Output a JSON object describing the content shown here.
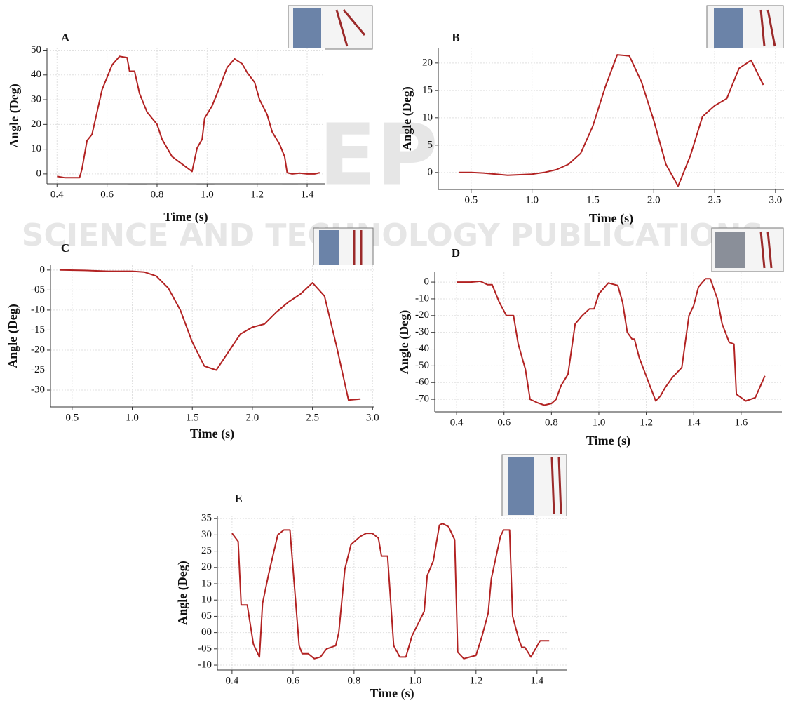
{
  "watermark": {
    "title": "SCITEPRESS",
    "subtitle": "SCIENCE AND TECHNOLOGY PUBLICATIONS"
  },
  "chart_data": [
    {
      "type": "line",
      "panel": "A",
      "xlabel": "Time (s)",
      "ylabel": "Angle (Deg)",
      "grid": true,
      "color": "#b22222",
      "xlim": [
        0.36,
        1.47
      ],
      "ylim": [
        -4,
        51
      ],
      "xticks": [
        0.4,
        0.6,
        0.8,
        {
          "value": 1,
          "label": "1.0"
        },
        1.2,
        1.4
      ],
      "yticks": [
        0,
        10,
        20,
        30,
        40,
        50
      ],
      "x": [
        0.4,
        0.43,
        0.47,
        0.49,
        0.5,
        0.52,
        0.54,
        0.56,
        0.58,
        0.62,
        0.65,
        0.68,
        0.69,
        0.71,
        0.73,
        0.76,
        0.78,
        0.8,
        0.82,
        0.86,
        0.9,
        0.94,
        0.96,
        0.98,
        0.99,
        1.02,
        1.05,
        1.08,
        1.11,
        1.14,
        1.16,
        1.19,
        1.21,
        1.24,
        1.26,
        1.29,
        1.31,
        1.32,
        1.34,
        1.37,
        1.4,
        1.43,
        1.45
      ],
      "values": [
        -1,
        -1.5,
        -1.5,
        -1.5,
        2,
        13.5,
        16,
        25,
        34,
        44,
        47.5,
        47,
        41.5,
        41.5,
        32.5,
        25,
        22.5,
        20,
        14,
        7,
        4,
        1,
        10.5,
        14,
        22.5,
        27.5,
        35,
        43,
        46.5,
        44.5,
        41,
        37,
        30,
        24,
        17,
        12,
        7,
        0.5,
        0,
        0.3,
        0,
        0,
        0.5
      ]
    },
    {
      "type": "line",
      "panel": "B",
      "xlabel": "Time (s)",
      "ylabel": "Angle (Deg)",
      "grid": true,
      "color": "#b22222",
      "xlim": [
        0.23,
        3.07
      ],
      "ylim": [
        -3.1,
        22.8
      ],
      "xticks": [
        0.5,
        {
          "value": 1,
          "label": "1.0"
        },
        1.5,
        {
          "value": 2,
          "label": "2.0"
        },
        2.5,
        {
          "value": 3,
          "label": "3.0"
        }
      ],
      "yticks": [
        0,
        5,
        10,
        15,
        20
      ],
      "x": [
        0.4,
        0.5,
        0.6,
        0.8,
        1.0,
        1.1,
        1.2,
        1.3,
        1.4,
        1.5,
        1.6,
        1.7,
        1.8,
        1.9,
        2.0,
        2.1,
        2.2,
        2.3,
        2.4,
        2.5,
        2.6,
        2.7,
        2.8,
        2.9
      ],
      "values": [
        0,
        0,
        -0.1,
        -0.5,
        -0.3,
        0,
        0.5,
        1.5,
        3.5,
        8.5,
        15.5,
        21.5,
        21.3,
        16.5,
        9.5,
        1.5,
        -2.5,
        3,
        10.2,
        12.2,
        13.5,
        19,
        20.5,
        16
      ]
    },
    {
      "type": "line",
      "panel": "C",
      "xlabel": "Time (s)",
      "ylabel": "Angle (Deg)",
      "grid": true,
      "color": "#b22222",
      "xlim": [
        0.32,
        3.01
      ],
      "ylim": [
        -34.2,
        1.2
      ],
      "xticks": [
        0.5,
        {
          "value": 1,
          "label": "1.0"
        },
        1.5,
        {
          "value": 2,
          "label": "2.0"
        },
        2.5,
        {
          "value": 3,
          "label": "3.0"
        }
      ],
      "yticks": [
        0,
        {
          "value": -5,
          "label": "-05"
        },
        -10,
        -15,
        -20,
        -25,
        -30
      ],
      "x": [
        0.4,
        0.6,
        0.8,
        1.0,
        1.1,
        1.2,
        1.3,
        1.4,
        1.5,
        1.6,
        1.7,
        1.8,
        1.9,
        2.0,
        2.1,
        2.2,
        2.3,
        2.4,
        2.5,
        2.6,
        2.7,
        2.8,
        2.9
      ],
      "values": [
        0,
        -0.1,
        -0.3,
        -0.3,
        -0.5,
        -1.5,
        -4.5,
        -10,
        -18,
        -24,
        -25,
        -20.5,
        -16,
        -14.3,
        -13.5,
        -10.5,
        -8,
        -6,
        -3.2,
        -6.5,
        -19,
        -32.5,
        -32.2
      ]
    },
    {
      "type": "line",
      "panel": "D",
      "xlabel": "Time (s)",
      "ylabel": "Angle (Deg)",
      "grid": true,
      "color": "#b22222",
      "xlim": [
        0.308,
        1.772
      ],
      "ylim": [
        -77.5,
        5.9
      ],
      "xticks": [
        0.4,
        0.6,
        0.8,
        {
          "value": 1,
          "label": "1.0"
        },
        1.2,
        1.4,
        1.6
      ],
      "yticks": [
        0,
        -10,
        -20,
        -30,
        -40,
        -50,
        -60,
        -70
      ],
      "x": [
        0.4,
        0.46,
        0.5,
        0.53,
        0.55,
        0.58,
        0.61,
        0.64,
        0.66,
        0.69,
        0.71,
        0.74,
        0.77,
        0.8,
        0.82,
        0.84,
        0.87,
        0.9,
        0.93,
        0.96,
        0.98,
        1.0,
        1.04,
        1.08,
        1.1,
        1.12,
        1.14,
        1.15,
        1.17,
        1.21,
        1.24,
        1.26,
        1.28,
        1.31,
        1.35,
        1.38,
        1.4,
        1.42,
        1.45,
        1.47,
        1.5,
        1.52,
        1.55,
        1.57,
        1.58,
        1.62,
        1.66,
        1.7
      ],
      "values": [
        0,
        0,
        0.5,
        -1.5,
        -1.5,
        -12,
        -20,
        -20,
        -37,
        -52,
        -70,
        -72,
        -73.5,
        -72.5,
        -70,
        -62,
        -55,
        -25,
        -20,
        -16,
        -16,
        -7,
        -0.5,
        -2,
        -12,
        -30,
        -34,
        -34,
        -45,
        -60,
        -71,
        -68,
        -63,
        -57,
        -51,
        -20,
        -14,
        -3,
        2,
        2,
        -10,
        -25,
        -36,
        -37,
        -67,
        -71,
        -69,
        -56
      ]
    },
    {
      "type": "line",
      "panel": "E",
      "xlabel": "Time (s)",
      "ylabel": "Angle (Deg)",
      "grid": true,
      "color": "#b22222",
      "xlim": [
        0.352,
        1.497
      ],
      "ylim": [
        -11.5,
        35.9
      ],
      "xticks": [
        0.4,
        0.6,
        0.8,
        {
          "value": 1,
          "label": "1.0"
        },
        1.2,
        1.4
      ],
      "yticks": [
        35,
        30,
        25,
        20,
        15,
        10,
        {
          "value": 5,
          "label": "05"
        },
        {
          "value": 0,
          "label": "00"
        },
        {
          "value": -5,
          "label": "-05"
        },
        -10
      ],
      "x": [
        0.4,
        0.42,
        0.43,
        0.45,
        0.47,
        0.49,
        0.5,
        0.52,
        0.55,
        0.57,
        0.59,
        0.62,
        0.63,
        0.65,
        0.67,
        0.69,
        0.71,
        0.74,
        0.75,
        0.77,
        0.79,
        0.82,
        0.84,
        0.86,
        0.88,
        0.89,
        0.91,
        0.93,
        0.95,
        0.97,
        0.99,
        1.03,
        1.04,
        1.06,
        1.08,
        1.09,
        1.11,
        1.13,
        1.14,
        1.16,
        1.18,
        1.2,
        1.22,
        1.24,
        1.25,
        1.28,
        1.29,
        1.31,
        1.32,
        1.34,
        1.35,
        1.36,
        1.38,
        1.41,
        1.44
      ],
      "values": [
        30.5,
        28,
        8.5,
        8.5,
        -3.5,
        -7.5,
        9,
        18,
        30,
        31.5,
        31.5,
        -4,
        -6.5,
        -6.5,
        -8,
        -7.5,
        -5,
        -4,
        0,
        19.5,
        27,
        29.5,
        30.5,
        30.5,
        29,
        23.5,
        23.5,
        -4,
        -7.5,
        -7.5,
        -1,
        6.5,
        17.5,
        22,
        33,
        33.5,
        32.5,
        28.5,
        -6,
        -8,
        -7.5,
        -7,
        -1,
        6,
        16.5,
        29.5,
        31.5,
        31.5,
        5,
        -2,
        -4.5,
        -4.5,
        -7.5,
        -2.5,
        -2.5
      ]
    }
  ]
}
